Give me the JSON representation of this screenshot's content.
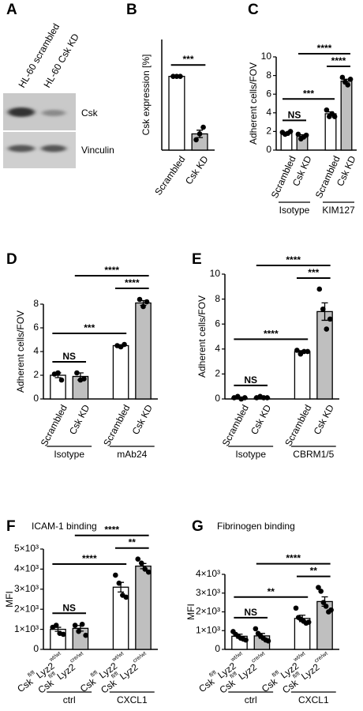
{
  "blot": {
    "panel": "A",
    "lanes": [
      "HL-60 scrambled",
      "HL-60 Csk KD"
    ],
    "rows": [
      "Csk",
      "Vinculin"
    ]
  },
  "chart_data": [
    {
      "type": "bar",
      "panel": "B",
      "ylabel": "Csk expression [%]",
      "categories": [
        "Scrambled",
        "Csk KD"
      ],
      "values": [
        100,
        22
      ],
      "errors": [
        0.5,
        5
      ],
      "points": [
        [
          100,
          100,
          100
        ],
        [
          14,
          22,
          31
        ]
      ],
      "colors": [
        "#ffffff",
        "#bfbfbf"
      ],
      "ylim": [
        0,
        150
      ],
      "brackets": [
        {
          "from": 0,
          "to": 1,
          "label": "***"
        }
      ]
    },
    {
      "type": "bar",
      "panel": "C",
      "ylabel": "Adherent cells/FOV",
      "categories": [
        "Scrambled",
        "Csk KD",
        "Scrambled",
        "Csk KD"
      ],
      "values": [
        1.8,
        1.5,
        3.9,
        7.4
      ],
      "errors": [
        0.1,
        0.15,
        0.2,
        0.2
      ],
      "points": [
        [
          1.9,
          1.7,
          1.8,
          2.0
        ],
        [
          1.7,
          1.2,
          1.4,
          1.6
        ],
        [
          4.3,
          3.6,
          3.9,
          3.6
        ],
        [
          7.8,
          7.3,
          7.0,
          7.6
        ]
      ],
      "colors": [
        "#ffffff",
        "#bfbfbf",
        "#ffffff",
        "#bfbfbf"
      ],
      "ylim": [
        0,
        10
      ],
      "yticks": [
        0,
        2,
        4,
        6,
        8,
        10
      ],
      "groups": [
        {
          "label": "Isotype",
          "from": 0,
          "to": 1
        },
        {
          "label": "KIM127",
          "from": 2,
          "to": 3
        }
      ],
      "brackets": [
        {
          "from": 0,
          "to": 1,
          "label": "NS"
        },
        {
          "from": 0,
          "to": 2,
          "label": "***"
        },
        {
          "from": 2,
          "to": 3,
          "label": "****"
        },
        {
          "from": 1,
          "to": 3,
          "label": "****"
        }
      ]
    },
    {
      "type": "bar",
      "panel": "D",
      "ylabel": "Adherent cells/FOV",
      "categories": [
        "Scrambled",
        "Csk KD",
        "Scrambled",
        "Csk KD"
      ],
      "values": [
        2.0,
        1.9,
        4.5,
        8.1
      ],
      "errors": [
        0.2,
        0.3,
        0.07,
        0.2
      ],
      "points": [
        [
          2.1,
          2.2,
          1.6
        ],
        [
          2.2,
          1.6,
          1.7
        ],
        [
          4.5,
          4.4,
          4.6
        ],
        [
          8.4,
          7.8,
          8.2
        ]
      ],
      "colors": [
        "#ffffff",
        "#bfbfbf",
        "#ffffff",
        "#bfbfbf"
      ],
      "ylim": [
        0,
        8
      ],
      "yticks": [
        0,
        2,
        4,
        6,
        8
      ],
      "groups": [
        {
          "label": "Isotype",
          "from": 0,
          "to": 1
        },
        {
          "label": "mAb24",
          "from": 2,
          "to": 3
        }
      ],
      "brackets": [
        {
          "from": 0,
          "to": 1,
          "label": "NS"
        },
        {
          "from": 0,
          "to": 2,
          "label": "***"
        },
        {
          "from": 2,
          "to": 3,
          "label": "****"
        },
        {
          "from": 1,
          "to": 3,
          "label": "****"
        }
      ]
    },
    {
      "type": "bar",
      "panel": "E",
      "ylabel": "Adherent cells/FOV",
      "categories": [
        "Scrambled",
        "Csk KD",
        "Scrambled",
        "Csk KD"
      ],
      "values": [
        0.1,
        0.1,
        3.8,
        7.0
      ],
      "errors": [
        0.05,
        0.03,
        0.07,
        0.7
      ],
      "points": [
        [
          0.1,
          0.2,
          0,
          0.1
        ],
        [
          0.1,
          0.2,
          0.1,
          0.1
        ],
        [
          3.9,
          3.6,
          3.8,
          3.8
        ],
        [
          8.8,
          7.2,
          5.6,
          6.4
        ]
      ],
      "colors": [
        "#ffffff",
        "#bfbfbf",
        "#ffffff",
        "#bfbfbf"
      ],
      "ylim": [
        0,
        10
      ],
      "yticks": [
        0,
        2,
        4,
        6,
        8,
        10
      ],
      "groups": [
        {
          "label": "Isotype",
          "from": 0,
          "to": 1
        },
        {
          "label": "CBRM1/5",
          "from": 2,
          "to": 3
        }
      ],
      "brackets": [
        {
          "from": 0,
          "to": 1,
          "label": "NS"
        },
        {
          "from": 0,
          "to": 2,
          "label": "****"
        },
        {
          "from": 2,
          "to": 3,
          "label": "***"
        },
        {
          "from": 1,
          "to": 3,
          "label": "****"
        }
      ]
    },
    {
      "type": "bar",
      "panel": "F",
      "title": "ICAM-1 binding",
      "ylabel": "MFI",
      "categories": [
        "Cskfl/flLyz2wt/wt",
        "Cskfl/flLyz2cre/wt",
        "Cskfl/flLyz2wt/wt",
        "Cskfl/flLyz2cre/wt"
      ],
      "values": [
        1000,
        1050,
        3100,
        4150
      ],
      "errors": [
        100,
        140,
        240,
        130
      ],
      "points": [
        [
          1100,
          1200,
          800,
          750
        ],
        [
          1200,
          900,
          1250,
          700
        ],
        [
          3700,
          3300,
          2700,
          2600
        ],
        [
          4500,
          4300,
          4000,
          3850
        ]
      ],
      "colors": [
        "#ffffff",
        "#bfbfbf",
        "#ffffff",
        "#bfbfbf"
      ],
      "ylim": [
        0,
        5000
      ],
      "yticks": [
        0,
        {
          "value": 1000,
          "label": "1×10³"
        },
        {
          "value": 2000,
          "label": "2×10³"
        },
        {
          "value": 3000,
          "label": "3×10³"
        },
        {
          "value": 4000,
          "label": "4×10³"
        },
        {
          "value": 5000,
          "label": "5×10³"
        }
      ],
      "groups": [
        {
          "label": "ctrl",
          "from": 0,
          "to": 1
        },
        {
          "label": "CXCL1",
          "from": 2,
          "to": 3
        }
      ],
      "brackets": [
        {
          "from": 0,
          "to": 1,
          "label": "NS"
        },
        {
          "from": 0,
          "to": 2,
          "label": "****"
        },
        {
          "from": 2,
          "to": 3,
          "label": "**"
        },
        {
          "from": 1,
          "to": 3,
          "label": "****"
        }
      ]
    },
    {
      "type": "bar",
      "panel": "G",
      "title": "Fibrinogen binding",
      "ylabel": "MFI",
      "categories": [
        "Cskfl/flLyz2wt/wt",
        "Cskfl/flLyz2cre/wt",
        "Cskfl/flLyz2wt/wt",
        "Cskfl/flLyz2cre/wt"
      ],
      "values": [
        700,
        720,
        1650,
        2550
      ],
      "errors": [
        110,
        130,
        170,
        250
      ],
      "points": [
        [
          950,
          800,
          700,
          600,
          550,
          500
        ],
        [
          1100,
          850,
          700,
          600,
          500,
          450
        ],
        [
          2200,
          1700,
          1600,
          1500,
          1400,
          1450
        ],
        [
          3300,
          3100,
          2500,
          2300,
          2000,
          2100
        ]
      ],
      "colors": [
        "#ffffff",
        "#bfbfbf",
        "#ffffff",
        "#bfbfbf"
      ],
      "ylim": [
        0,
        4000
      ],
      "yticks": [
        0,
        {
          "value": 1000,
          "label": "1×10³"
        },
        {
          "value": 2000,
          "label": "2×10³"
        },
        {
          "value": 3000,
          "label": "3×10³"
        },
        {
          "value": 4000,
          "label": "4×10³"
        }
      ],
      "groups": [
        {
          "label": "ctrl",
          "from": 0,
          "to": 1
        },
        {
          "label": "CXCL1",
          "from": 2,
          "to": 3
        }
      ],
      "brackets": [
        {
          "from": 0,
          "to": 1,
          "label": "NS"
        },
        {
          "from": 0,
          "to": 2,
          "label": "**"
        },
        {
          "from": 2,
          "to": 3,
          "label": "**"
        },
        {
          "from": 1,
          "to": 3,
          "label": "****"
        }
      ]
    }
  ]
}
